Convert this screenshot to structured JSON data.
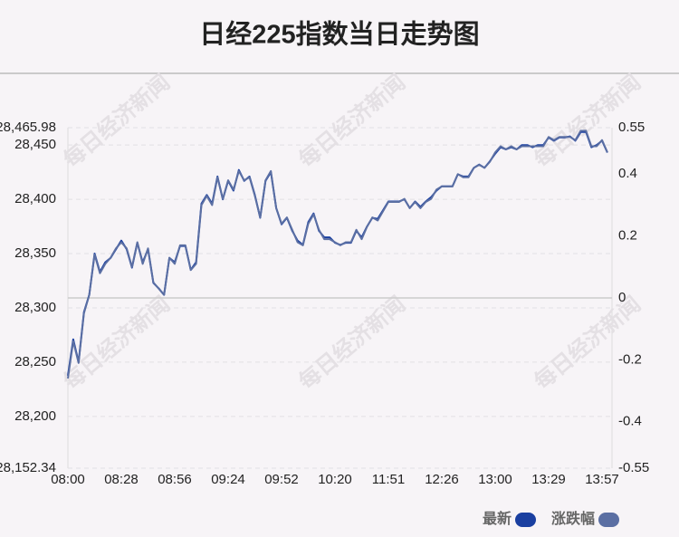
{
  "chart_data": {
    "type": "line",
    "title": "日经225指数当日走势图",
    "watermark": "每日经济新闻",
    "categories": [
      "08:00",
      null,
      null,
      null,
      null,
      null,
      null,
      null,
      null,
      null,
      "08:28",
      null,
      null,
      null,
      null,
      null,
      null,
      null,
      null,
      null,
      "08:56",
      null,
      null,
      null,
      null,
      null,
      null,
      null,
      null,
      null,
      "09:24",
      null,
      null,
      null,
      null,
      null,
      null,
      null,
      null,
      null,
      "09:52",
      null,
      null,
      null,
      null,
      null,
      null,
      null,
      null,
      null,
      "10:20",
      null,
      null,
      null,
      null,
      null,
      null,
      null,
      null,
      null,
      "11:51",
      null,
      null,
      null,
      null,
      null,
      null,
      null,
      null,
      null,
      "12:26",
      null,
      null,
      null,
      null,
      null,
      null,
      null,
      null,
      null,
      "13:00",
      null,
      null,
      null,
      null,
      null,
      null,
      null,
      null,
      null,
      "13:29",
      null,
      null,
      null,
      null,
      null,
      null,
      null,
      null,
      null,
      "13:57",
      null
    ],
    "series": [
      {
        "name": "最新",
        "color": "#1a3fa0",
        "values": [
          28237.5,
          28271,
          28250,
          28296,
          28312,
          28350,
          28333,
          28342,
          28346,
          28354,
          28362,
          28354,
          28337,
          28360,
          28342,
          28354,
          28323,
          28318,
          28312,
          28346,
          28342,
          28357,
          28357,
          28335,
          28342,
          28396,
          28404,
          28396,
          28421,
          28400,
          28417,
          28408,
          28427,
          28417,
          28421,
          28404,
          28383,
          28417,
          28425,
          28392,
          28377,
          28383,
          28371,
          28362,
          28358,
          28379,
          28387,
          28371,
          28365,
          28365,
          28360,
          28358,
          28360,
          28360,
          28371,
          28365,
          28375,
          28383,
          28382,
          28390,
          28398,
          28398,
          28398,
          28400,
          28392,
          28398,
          28393,
          28398,
          28402,
          28408,
          28412,
          28412,
          28412,
          28423,
          28421,
          28421,
          28429,
          28432,
          28429,
          28435,
          28442,
          28448,
          28446,
          28448,
          28446,
          28450,
          28450,
          28448,
          28450,
          28450,
          28457,
          28454,
          28457,
          28457,
          28458,
          28454,
          28462,
          28462,
          28448,
          28450,
          28454,
          28443
        ]
      },
      {
        "name": "涨跌幅",
        "color": "#5b6fa3",
        "axis": "y2",
        "values": [
          -0.26,
          -0.14,
          -0.21,
          -0.05,
          0.01,
          0.14,
          0.08,
          0.11,
          0.13,
          0.16,
          0.18,
          0.16,
          0.1,
          0.18,
          0.11,
          0.16,
          0.05,
          0.03,
          0.01,
          0.13,
          0.11,
          0.17,
          0.17,
          0.09,
          0.11,
          0.3,
          0.33,
          0.3,
          0.39,
          0.32,
          0.38,
          0.35,
          0.41,
          0.38,
          0.39,
          0.33,
          0.26,
          0.38,
          0.41,
          0.29,
          0.24,
          0.26,
          0.22,
          0.18,
          0.17,
          0.24,
          0.27,
          0.22,
          0.19,
          0.19,
          0.18,
          0.17,
          0.18,
          0.18,
          0.22,
          0.19,
          0.23,
          0.26,
          0.25,
          0.28,
          0.31,
          0.31,
          0.31,
          0.32,
          0.29,
          0.31,
          0.29,
          0.31,
          0.32,
          0.35,
          0.36,
          0.36,
          0.36,
          0.4,
          0.39,
          0.39,
          0.42,
          0.43,
          0.42,
          0.44,
          0.47,
          0.49,
          0.48,
          0.49,
          0.48,
          0.49,
          0.49,
          0.49,
          0.49,
          0.49,
          0.52,
          0.51,
          0.52,
          0.52,
          0.52,
          0.51,
          0.54,
          0.54,
          0.49,
          0.49,
          0.51,
          0.47
        ]
      }
    ],
    "ylim": [
      28152.34,
      28465.98
    ],
    "yticks": [
      {
        "value": 28152.34,
        "label": "28,152.34"
      },
      {
        "value": 28200,
        "label": "28,200"
      },
      {
        "value": 28250,
        "label": "28,250"
      },
      {
        "value": 28300,
        "label": "28,300"
      },
      {
        "value": 28350,
        "label": "28,350"
      },
      {
        "value": 28400,
        "label": "28,400"
      },
      {
        "value": 28450,
        "label": "28,450"
      },
      {
        "value": 28465.98,
        "label": "28,465.98"
      }
    ],
    "y2lim": [
      -0.55,
      0.55
    ],
    "y2ticks": [
      -0.55,
      -0.4,
      -0.2,
      0,
      0.2,
      0.4,
      0.55
    ],
    "grid": true
  }
}
